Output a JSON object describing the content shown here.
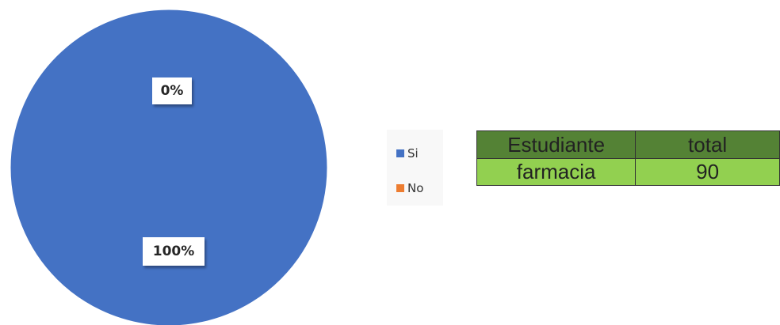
{
  "chart_data": {
    "type": "pie",
    "categories": [
      "Si",
      "No"
    ],
    "values": [
      100,
      0
    ],
    "data_labels": [
      "100%",
      "0%"
    ],
    "colors": [
      "#4472c4",
      "#ed7d31"
    ],
    "legend": "right"
  },
  "labels": {
    "si_pct": "100%",
    "no_pct": "0%"
  },
  "legend": {
    "items": [
      {
        "label": "Si",
        "color": "#4472c4"
      },
      {
        "label": "No",
        "color": "#ed7d31"
      }
    ]
  },
  "table": {
    "headers": [
      "Estudiante",
      "total"
    ],
    "rows": [
      [
        "farmacia",
        "90"
      ]
    ]
  }
}
